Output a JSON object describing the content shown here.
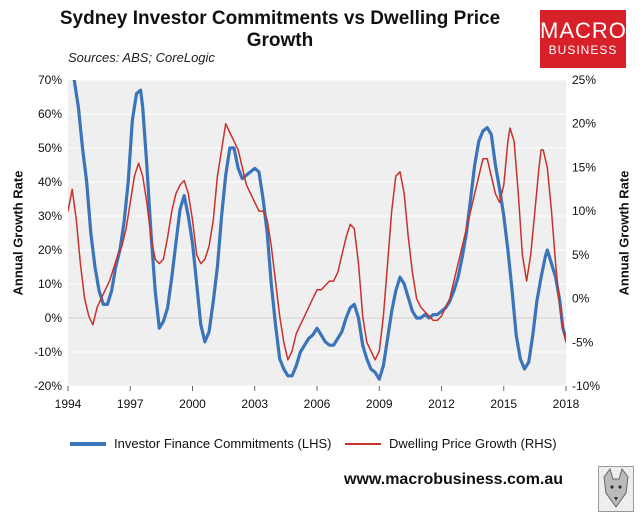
{
  "title": "Sydney Investor Commitments vs Dwelling Price Growth",
  "sources": "Sources: ABS; CoreLogic",
  "logo": {
    "line1": "MACRO",
    "line2": "BUSINESS",
    "color": "#d8202a",
    "icon": "wolf-icon"
  },
  "website": "www.macrobusiness.com.au",
  "colors": {
    "investor": "#3b74b9",
    "price": "#c8322d",
    "plot_bg": "#efefef"
  },
  "chart_data": {
    "type": "line",
    "title": "Sydney Investor Commitments vs Dwelling Price Growth",
    "xlabel": "",
    "ylabel_left": "Annual Growth Rate",
    "ylabel_right": "Annual Growth Rate",
    "xlim": [
      1994,
      2018
    ],
    "x_ticks": [
      "1994",
      "1997",
      "2000",
      "2003",
      "2006",
      "2009",
      "2012",
      "2015",
      "2018"
    ],
    "x_tick_values": [
      1994,
      1997,
      2000,
      2003,
      2006,
      2009,
      2012,
      2015,
      2018
    ],
    "ylim_left": [
      -20,
      70
    ],
    "y_ticks_left": [
      "-20%",
      "-10%",
      "0%",
      "10%",
      "20%",
      "30%",
      "40%",
      "50%",
      "60%",
      "70%"
    ],
    "y_tick_values_left": [
      -20,
      -10,
      0,
      10,
      20,
      30,
      40,
      50,
      60,
      70
    ],
    "ylim_right": [
      -10,
      25
    ],
    "y_ticks_right": [
      "-10%",
      "-5%",
      "0%",
      "5%",
      "10%",
      "15%",
      "20%",
      "25%"
    ],
    "y_tick_values_right": [
      -10,
      -5,
      0,
      5,
      10,
      15,
      20,
      25
    ],
    "series": [
      {
        "name": "Investor Finance Commitments (LHS)",
        "axis": "left",
        "points": [
          [
            1994.3,
            70
          ],
          [
            1994.5,
            62
          ],
          [
            1994.7,
            50
          ],
          [
            1994.9,
            40
          ],
          [
            1995.1,
            25
          ],
          [
            1995.3,
            15
          ],
          [
            1995.5,
            8
          ],
          [
            1995.7,
            4
          ],
          [
            1995.9,
            4
          ],
          [
            1996.1,
            8
          ],
          [
            1996.3,
            15
          ],
          [
            1996.5,
            20
          ],
          [
            1996.7,
            28
          ],
          [
            1996.9,
            40
          ],
          [
            1997.1,
            58
          ],
          [
            1997.3,
            66
          ],
          [
            1997.5,
            67
          ],
          [
            1997.6,
            62
          ],
          [
            1997.8,
            45
          ],
          [
            1998.0,
            25
          ],
          [
            1998.2,
            8
          ],
          [
            1998.4,
            -3
          ],
          [
            1998.6,
            -1
          ],
          [
            1998.8,
            3
          ],
          [
            1999.0,
            12
          ],
          [
            1999.2,
            22
          ],
          [
            1999.4,
            32
          ],
          [
            1999.6,
            36
          ],
          [
            1999.8,
            30
          ],
          [
            2000.0,
            22
          ],
          [
            2000.2,
            10
          ],
          [
            2000.4,
            -2
          ],
          [
            2000.6,
            -7
          ],
          [
            2000.8,
            -4
          ],
          [
            2001.0,
            5
          ],
          [
            2001.2,
            15
          ],
          [
            2001.4,
            30
          ],
          [
            2001.6,
            42
          ],
          [
            2001.8,
            50
          ],
          [
            2002.0,
            50
          ],
          [
            2002.2,
            44
          ],
          [
            2002.4,
            41
          ],
          [
            2002.6,
            42
          ],
          [
            2002.8,
            43
          ],
          [
            2003.0,
            44
          ],
          [
            2003.2,
            43
          ],
          [
            2003.4,
            35
          ],
          [
            2003.6,
            25
          ],
          [
            2003.8,
            10
          ],
          [
            2004.0,
            -2
          ],
          [
            2004.2,
            -12
          ],
          [
            2004.4,
            -15
          ],
          [
            2004.6,
            -17
          ],
          [
            2004.8,
            -17
          ],
          [
            2005.0,
            -14
          ],
          [
            2005.2,
            -10
          ],
          [
            2005.4,
            -8
          ],
          [
            2005.6,
            -6
          ],
          [
            2005.8,
            -5
          ],
          [
            2006.0,
            -3
          ],
          [
            2006.2,
            -5
          ],
          [
            2006.4,
            -7
          ],
          [
            2006.6,
            -8
          ],
          [
            2006.8,
            -8
          ],
          [
            2007.0,
            -6
          ],
          [
            2007.2,
            -4
          ],
          [
            2007.4,
            0
          ],
          [
            2007.6,
            3
          ],
          [
            2007.8,
            4
          ],
          [
            2008.0,
            0
          ],
          [
            2008.2,
            -8
          ],
          [
            2008.4,
            -12
          ],
          [
            2008.6,
            -15
          ],
          [
            2008.8,
            -16
          ],
          [
            2009.0,
            -18
          ],
          [
            2009.2,
            -14
          ],
          [
            2009.4,
            -6
          ],
          [
            2009.6,
            2
          ],
          [
            2009.8,
            8
          ],
          [
            2010.0,
            12
          ],
          [
            2010.2,
            10
          ],
          [
            2010.4,
            6
          ],
          [
            2010.6,
            2
          ],
          [
            2010.8,
            0
          ],
          [
            2011.0,
            0
          ],
          [
            2011.2,
            1
          ],
          [
            2011.4,
            0
          ],
          [
            2011.6,
            1
          ],
          [
            2011.8,
            1
          ],
          [
            2012.0,
            2
          ],
          [
            2012.2,
            3
          ],
          [
            2012.4,
            5
          ],
          [
            2012.6,
            8
          ],
          [
            2012.8,
            12
          ],
          [
            2013.0,
            18
          ],
          [
            2013.2,
            25
          ],
          [
            2013.4,
            35
          ],
          [
            2013.6,
            45
          ],
          [
            2013.8,
            52
          ],
          [
            2014.0,
            55
          ],
          [
            2014.2,
            56
          ],
          [
            2014.4,
            54
          ],
          [
            2014.6,
            45
          ],
          [
            2014.8,
            38
          ],
          [
            2015.0,
            30
          ],
          [
            2015.2,
            20
          ],
          [
            2015.4,
            8
          ],
          [
            2015.6,
            -5
          ],
          [
            2015.8,
            -12
          ],
          [
            2016.0,
            -15
          ],
          [
            2016.2,
            -13
          ],
          [
            2016.4,
            -5
          ],
          [
            2016.6,
            5
          ],
          [
            2016.8,
            12
          ],
          [
            2017.0,
            18
          ],
          [
            2017.1,
            20
          ],
          [
            2017.3,
            16
          ],
          [
            2017.5,
            12
          ],
          [
            2017.7,
            5
          ],
          [
            2017.85,
            -3
          ],
          [
            2018.0,
            -6
          ]
        ]
      },
      {
        "name": "Dwelling Price Growth (RHS)",
        "axis": "right",
        "points": [
          [
            1994.0,
            10
          ],
          [
            1994.2,
            12.5
          ],
          [
            1994.4,
            9
          ],
          [
            1994.6,
            4
          ],
          [
            1994.8,
            0
          ],
          [
            1995.0,
            -2
          ],
          [
            1995.2,
            -3
          ],
          [
            1995.4,
            -1
          ],
          [
            1995.6,
            0
          ],
          [
            1995.8,
            1
          ],
          [
            1996.0,
            2
          ],
          [
            1996.2,
            3.5
          ],
          [
            1996.4,
            5
          ],
          [
            1996.6,
            6
          ],
          [
            1996.8,
            8
          ],
          [
            1997.0,
            11
          ],
          [
            1997.2,
            14
          ],
          [
            1997.4,
            15.5
          ],
          [
            1997.6,
            14
          ],
          [
            1997.8,
            11
          ],
          [
            1998.0,
            7
          ],
          [
            1998.2,
            4.5
          ],
          [
            1998.4,
            4
          ],
          [
            1998.6,
            4.5
          ],
          [
            1998.8,
            7
          ],
          [
            1999.0,
            10
          ],
          [
            1999.2,
            12
          ],
          [
            1999.4,
            13
          ],
          [
            1999.6,
            13.5
          ],
          [
            1999.8,
            12
          ],
          [
            2000.0,
            9
          ],
          [
            2000.2,
            5
          ],
          [
            2000.4,
            4
          ],
          [
            2000.6,
            4.5
          ],
          [
            2000.8,
            6
          ],
          [
            2001.0,
            9
          ],
          [
            2001.2,
            14
          ],
          [
            2001.4,
            17
          ],
          [
            2001.6,
            20
          ],
          [
            2001.8,
            19
          ],
          [
            2002.0,
            18
          ],
          [
            2002.2,
            17
          ],
          [
            2002.4,
            15
          ],
          [
            2002.6,
            13
          ],
          [
            2002.8,
            12
          ],
          [
            2003.0,
            11
          ],
          [
            2003.2,
            10
          ],
          [
            2003.4,
            10
          ],
          [
            2003.6,
            9
          ],
          [
            2003.8,
            6
          ],
          [
            2004.0,
            2
          ],
          [
            2004.2,
            -2
          ],
          [
            2004.4,
            -5
          ],
          [
            2004.6,
            -7
          ],
          [
            2004.8,
            -6
          ],
          [
            2005.0,
            -4
          ],
          [
            2005.2,
            -3
          ],
          [
            2005.4,
            -2
          ],
          [
            2005.6,
            -1
          ],
          [
            2005.8,
            0
          ],
          [
            2006.0,
            1
          ],
          [
            2006.2,
            1
          ],
          [
            2006.4,
            1.5
          ],
          [
            2006.6,
            2
          ],
          [
            2006.8,
            2
          ],
          [
            2007.0,
            3
          ],
          [
            2007.2,
            5
          ],
          [
            2007.4,
            7
          ],
          [
            2007.6,
            8.5
          ],
          [
            2007.8,
            8
          ],
          [
            2008.0,
            4
          ],
          [
            2008.2,
            -2
          ],
          [
            2008.4,
            -5
          ],
          [
            2008.6,
            -6
          ],
          [
            2008.8,
            -7
          ],
          [
            2009.0,
            -6
          ],
          [
            2009.2,
            -2
          ],
          [
            2009.4,
            4
          ],
          [
            2009.6,
            10
          ],
          [
            2009.8,
            14
          ],
          [
            2010.0,
            14.5
          ],
          [
            2010.2,
            12
          ],
          [
            2010.4,
            7
          ],
          [
            2010.6,
            3
          ],
          [
            2010.8,
            0
          ],
          [
            2011.0,
            -1
          ],
          [
            2011.2,
            -1.5
          ],
          [
            2011.4,
            -2
          ],
          [
            2011.6,
            -2.5
          ],
          [
            2011.8,
            -2.5
          ],
          [
            2012.0,
            -2
          ],
          [
            2012.2,
            -1
          ],
          [
            2012.4,
            0
          ],
          [
            2012.6,
            2
          ],
          [
            2012.8,
            4
          ],
          [
            2013.0,
            6
          ],
          [
            2013.2,
            8
          ],
          [
            2013.4,
            10
          ],
          [
            2013.6,
            12
          ],
          [
            2013.8,
            14
          ],
          [
            2014.0,
            16
          ],
          [
            2014.2,
            16
          ],
          [
            2014.4,
            14
          ],
          [
            2014.6,
            12
          ],
          [
            2014.8,
            11
          ],
          [
            2015.0,
            13
          ],
          [
            2015.2,
            18
          ],
          [
            2015.3,
            19.5
          ],
          [
            2015.5,
            18
          ],
          [
            2015.7,
            12
          ],
          [
            2015.9,
            5
          ],
          [
            2016.1,
            2
          ],
          [
            2016.3,
            5
          ],
          [
            2016.5,
            10
          ],
          [
            2016.7,
            15
          ],
          [
            2016.8,
            17
          ],
          [
            2016.9,
            17
          ],
          [
            2017.1,
            15
          ],
          [
            2017.3,
            10
          ],
          [
            2017.5,
            4
          ],
          [
            2017.7,
            -1
          ],
          [
            2017.9,
            -4
          ],
          [
            2018.0,
            -5
          ]
        ]
      }
    ]
  }
}
